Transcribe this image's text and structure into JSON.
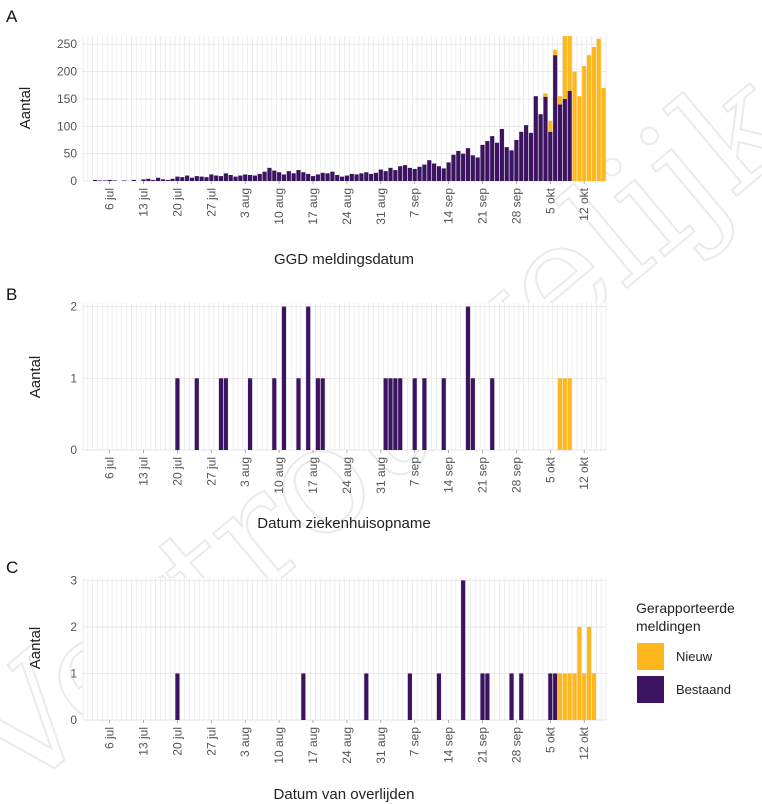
{
  "colors": {
    "nieuw": "#FFB81C",
    "bestaand": "#3B1361",
    "panel_background": "#ffffff",
    "grid": "#e6e6e6",
    "watermark": "#d9d9d9"
  },
  "watermark_text": "Vertrouwelijk",
  "legend": {
    "title_line1": "Gerapporteerde",
    "title_line2": "meldingen",
    "items": [
      {
        "label": "Nieuw",
        "color": "#FFB81C"
      },
      {
        "label": "Bestaand",
        "color": "#3B1361"
      }
    ]
  },
  "chart_data": [
    {
      "type": "bar",
      "stacked": true,
      "panel_label": "A",
      "title": "",
      "xlabel": "GGD meldingsdatum",
      "ylabel": "Aantal",
      "ylim": [
        0,
        265
      ],
      "yticks": [
        0,
        50,
        100,
        150,
        200,
        250
      ],
      "x_start": "2020-07-01",
      "x_end": "2020-10-16",
      "xticks": [
        "6 jul",
        "13 jul",
        "20 jul",
        "27 jul",
        "3 aug",
        "10 aug",
        "17 aug",
        "24 aug",
        "31 aug",
        "7 sep",
        "14 sep",
        "21 sep",
        "28 sep",
        "5 okt",
        "12 okt"
      ],
      "x_first_tick_date": "2020-07-06",
      "grid": true,
      "series": [
        {
          "name": "Nieuw",
          "points": [
            [
              "2020-10-04",
              6
            ],
            [
              "2020-10-05",
              20
            ],
            [
              "2020-10-06",
              10
            ],
            [
              "2020-10-07",
              15
            ],
            [
              "2020-10-08",
              195
            ],
            [
              "2020-10-09",
              248
            ],
            [
              "2020-10-10",
              200
            ],
            [
              "2020-10-11",
              155
            ],
            [
              "2020-10-12",
              210
            ],
            [
              "2020-10-13",
              230
            ],
            [
              "2020-10-14",
              245
            ],
            [
              "2020-10-15",
              260
            ],
            [
              "2020-10-16",
              170
            ],
            [
              "2020-10-17",
              30
            ]
          ]
        },
        {
          "name": "Bestaand",
          "points": [
            [
              "2020-07-03",
              2
            ],
            [
              "2020-07-04",
              1
            ],
            [
              "2020-07-05",
              1
            ],
            [
              "2020-07-06",
              2
            ],
            [
              "2020-07-07",
              1
            ],
            [
              "2020-07-09",
              1
            ],
            [
              "2020-07-11",
              2
            ],
            [
              "2020-07-13",
              3
            ],
            [
              "2020-07-14",
              4
            ],
            [
              "2020-07-15",
              2
            ],
            [
              "2020-07-16",
              6
            ],
            [
              "2020-07-17",
              3
            ],
            [
              "2020-07-18",
              2
            ],
            [
              "2020-07-19",
              4
            ],
            [
              "2020-07-20",
              8
            ],
            [
              "2020-07-21",
              7
            ],
            [
              "2020-07-22",
              10
            ],
            [
              "2020-07-23",
              6
            ],
            [
              "2020-07-24",
              9
            ],
            [
              "2020-07-25",
              8
            ],
            [
              "2020-07-26",
              7
            ],
            [
              "2020-07-27",
              12
            ],
            [
              "2020-07-28",
              10
            ],
            [
              "2020-07-29",
              9
            ],
            [
              "2020-07-30",
              14
            ],
            [
              "2020-07-31",
              11
            ],
            [
              "2020-08-01",
              8
            ],
            [
              "2020-08-02",
              10
            ],
            [
              "2020-08-03",
              12
            ],
            [
              "2020-08-04",
              11
            ],
            [
              "2020-08-05",
              10
            ],
            [
              "2020-08-06",
              13
            ],
            [
              "2020-08-07",
              17
            ],
            [
              "2020-08-08",
              24
            ],
            [
              "2020-08-09",
              19
            ],
            [
              "2020-08-10",
              16
            ],
            [
              "2020-08-11",
              12
            ],
            [
              "2020-08-12",
              18
            ],
            [
              "2020-08-13",
              14
            ],
            [
              "2020-08-14",
              20
            ],
            [
              "2020-08-15",
              16
            ],
            [
              "2020-08-16",
              13
            ],
            [
              "2020-08-17",
              9
            ],
            [
              "2020-08-18",
              12
            ],
            [
              "2020-08-19",
              15
            ],
            [
              "2020-08-20",
              14
            ],
            [
              "2020-08-21",
              17
            ],
            [
              "2020-08-22",
              11
            ],
            [
              "2020-08-23",
              8
            ],
            [
              "2020-08-24",
              10
            ],
            [
              "2020-08-25",
              13
            ],
            [
              "2020-08-26",
              12
            ],
            [
              "2020-08-27",
              14
            ],
            [
              "2020-08-28",
              16
            ],
            [
              "2020-08-29",
              13
            ],
            [
              "2020-08-30",
              15
            ],
            [
              "2020-08-31",
              21
            ],
            [
              "2020-09-01",
              18
            ],
            [
              "2020-09-02",
              24
            ],
            [
              "2020-09-03",
              20
            ],
            [
              "2020-09-04",
              27
            ],
            [
              "2020-09-05",
              29
            ],
            [
              "2020-09-06",
              24
            ],
            [
              "2020-09-07",
              22
            ],
            [
              "2020-09-08",
              26
            ],
            [
              "2020-09-09",
              30
            ],
            [
              "2020-09-10",
              38
            ],
            [
              "2020-09-11",
              32
            ],
            [
              "2020-09-12",
              27
            ],
            [
              "2020-09-13",
              23
            ],
            [
              "2020-09-14",
              34
            ],
            [
              "2020-09-15",
              48
            ],
            [
              "2020-09-16",
              55
            ],
            [
              "2020-09-17",
              50
            ],
            [
              "2020-09-18",
              60
            ],
            [
              "2020-09-19",
              47
            ],
            [
              "2020-09-20",
              43
            ],
            [
              "2020-09-21",
              66
            ],
            [
              "2020-09-22",
              73
            ],
            [
              "2020-09-23",
              82
            ],
            [
              "2020-09-24",
              70
            ],
            [
              "2020-09-25",
              95
            ],
            [
              "2020-09-26",
              62
            ],
            [
              "2020-09-27",
              56
            ],
            [
              "2020-09-28",
              75
            ],
            [
              "2020-09-29",
              90
            ],
            [
              "2020-09-30",
              102
            ],
            [
              "2020-10-01",
              88
            ],
            [
              "2020-10-02",
              155
            ],
            [
              "2020-10-03",
              122
            ],
            [
              "2020-10-04",
              154
            ],
            [
              "2020-10-05",
              90
            ],
            [
              "2020-10-06",
              230
            ],
            [
              "2020-10-07",
              140
            ],
            [
              "2020-10-08",
              150
            ],
            [
              "2020-10-09",
              165
            ]
          ]
        }
      ]
    },
    {
      "type": "bar",
      "stacked": true,
      "panel_label": "B",
      "title": "",
      "xlabel": "Datum ziekenhuisopname",
      "ylabel": "Aantal",
      "ylim": [
        0,
        2.05
      ],
      "yticks": [
        0,
        1,
        2
      ],
      "x_start": "2020-07-01",
      "x_end": "2020-10-16",
      "xticks": [
        "6 jul",
        "13 jul",
        "20 jul",
        "27 jul",
        "3 aug",
        "10 aug",
        "17 aug",
        "24 aug",
        "31 aug",
        "7 sep",
        "14 sep",
        "21 sep",
        "28 sep",
        "5 okt",
        "12 okt"
      ],
      "x_first_tick_date": "2020-07-06",
      "grid": true,
      "series": [
        {
          "name": "Nieuw",
          "points": [
            [
              "2020-10-07",
              1
            ],
            [
              "2020-10-08",
              1
            ],
            [
              "2020-10-09",
              1
            ]
          ]
        },
        {
          "name": "Bestaand",
          "points": [
            [
              "2020-07-20",
              1
            ],
            [
              "2020-07-24",
              1
            ],
            [
              "2020-07-29",
              1
            ],
            [
              "2020-07-30",
              1
            ],
            [
              "2020-08-04",
              1
            ],
            [
              "2020-08-09",
              1
            ],
            [
              "2020-08-11",
              2
            ],
            [
              "2020-08-14",
              1
            ],
            [
              "2020-08-16",
              2
            ],
            [
              "2020-08-18",
              1
            ],
            [
              "2020-08-19",
              1
            ],
            [
              "2020-09-01",
              1
            ],
            [
              "2020-09-02",
              1
            ],
            [
              "2020-09-03",
              1
            ],
            [
              "2020-09-04",
              1
            ],
            [
              "2020-09-07",
              1
            ],
            [
              "2020-09-09",
              1
            ],
            [
              "2020-09-13",
              1
            ],
            [
              "2020-09-18",
              2
            ],
            [
              "2020-09-19",
              1
            ],
            [
              "2020-09-23",
              1
            ]
          ]
        }
      ]
    },
    {
      "type": "bar",
      "stacked": true,
      "panel_label": "C",
      "title": "",
      "xlabel": "Datum van overlijden",
      "ylabel": "Aantal",
      "ylim": [
        0,
        3.05
      ],
      "yticks": [
        0,
        1,
        2,
        3
      ],
      "x_start": "2020-07-01",
      "x_end": "2020-10-16",
      "xticks": [
        "6 jul",
        "13 jul",
        "20 jul",
        "27 jul",
        "3 aug",
        "10 aug",
        "17 aug",
        "24 aug",
        "31 aug",
        "7 sep",
        "14 sep",
        "21 sep",
        "28 sep",
        "5 okt",
        "12 okt"
      ],
      "x_first_tick_date": "2020-07-06",
      "grid": true,
      "series": [
        {
          "name": "Nieuw",
          "points": [
            [
              "2020-10-07",
              1
            ],
            [
              "2020-10-08",
              1
            ],
            [
              "2020-10-09",
              1
            ],
            [
              "2020-10-10",
              1
            ],
            [
              "2020-10-11",
              2
            ],
            [
              "2020-10-12",
              1
            ],
            [
              "2020-10-13",
              2
            ],
            [
              "2020-10-14",
              1
            ]
          ]
        },
        {
          "name": "Bestaand",
          "points": [
            [
              "2020-07-20",
              1
            ],
            [
              "2020-08-15",
              1
            ],
            [
              "2020-08-28",
              1
            ],
            [
              "2020-09-06",
              1
            ],
            [
              "2020-09-12",
              1
            ],
            [
              "2020-09-17",
              3
            ],
            [
              "2020-09-21",
              1
            ],
            [
              "2020-09-22",
              1
            ],
            [
              "2020-09-27",
              1
            ],
            [
              "2020-09-29",
              1
            ],
            [
              "2020-10-05",
              1
            ],
            [
              "2020-10-06",
              1
            ]
          ]
        }
      ]
    }
  ]
}
